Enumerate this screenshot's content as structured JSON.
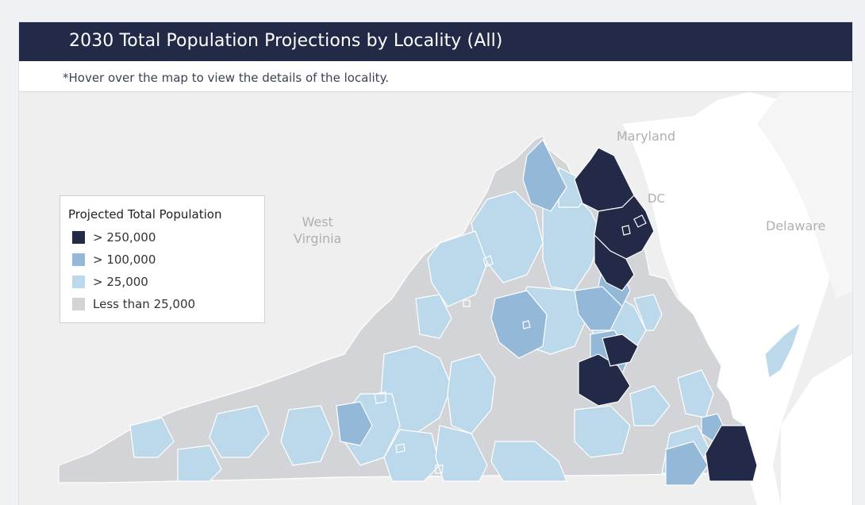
{
  "header": {
    "title": "2030 Total Population Projections by Locality (All)"
  },
  "subtitle": "*Hover over the map to view the details of the locality.",
  "map": {
    "places": [
      {
        "label": "Maryland",
        "name": "maryland-label"
      },
      {
        "label": "DC",
        "name": "dc-label"
      },
      {
        "label": "Delaware",
        "name": "delaware-label"
      },
      {
        "label": "West\nVirginia",
        "name": "west-virginia-label"
      }
    ]
  },
  "legend": {
    "title": "Projected Total Population",
    "items": [
      {
        "label": "> 250,000",
        "color": "#232a48",
        "category": "gt250k"
      },
      {
        "label": "> 100,000",
        "color": "#93b8d8",
        "category": "gt100k"
      },
      {
        "label": "> 25,000",
        "color": "#bbd9ea",
        "category": "gt25k"
      },
      {
        "label": "Less than 25,000",
        "color": "#d3d4d7",
        "category": "lt25k"
      }
    ]
  },
  "colors": {
    "header_bg": "#232a48",
    "land": "#eaeaea",
    "water": "#ffffff",
    "county_border": "#ffffff"
  }
}
